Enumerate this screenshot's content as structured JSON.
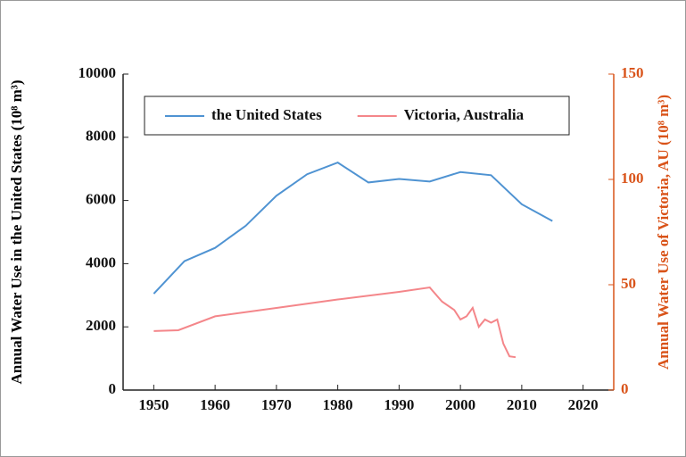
{
  "chart_data": {
    "type": "line",
    "ylabel": "Annual Water Use in the United States (10⁸ m³)",
    "y2label": "Annual Water Use of Victoria, AU (10⁸ m³)",
    "xlim": [
      1945,
      2025
    ],
    "xticks": [
      1950,
      1960,
      1970,
      1980,
      1990,
      2000,
      2010,
      2020
    ],
    "ylim": [
      0,
      10000
    ],
    "yticks": [
      0,
      2000,
      4000,
      6000,
      8000,
      10000
    ],
    "y2lim": [
      0,
      150
    ],
    "y2ticks": [
      0,
      50,
      100,
      150
    ],
    "y2color": "#d95319",
    "legend": "upper left",
    "series": [
      {
        "name": "the United States",
        "color": "#4f93d2",
        "x": [
          1950,
          1955,
          1960,
          1965,
          1970,
          1975,
          1980,
          1985,
          1990,
          1995,
          2000,
          2005,
          2010,
          2015
        ],
        "values": [
          3050,
          4080,
          4500,
          5200,
          6150,
          6830,
          7200,
          6570,
          6680,
          6600,
          6900,
          6800,
          5880,
          5350
        ]
      },
      {
        "name": "Victoria, Australia",
        "color": "#f4868a",
        "axis": "y2",
        "x": [
          1950,
          1954,
          1960,
          1970,
          1980,
          1990,
          1995,
          1997,
          1999,
          2000,
          2001,
          2002,
          2003,
          2004,
          2005,
          2006,
          2007,
          2008,
          2009
        ],
        "values": [
          28,
          28.4,
          35,
          39,
          43,
          46.6,
          48.7,
          42,
          38,
          33.5,
          35,
          39,
          30,
          33.5,
          32,
          33.5,
          22,
          16,
          15.6
        ]
      }
    ]
  }
}
